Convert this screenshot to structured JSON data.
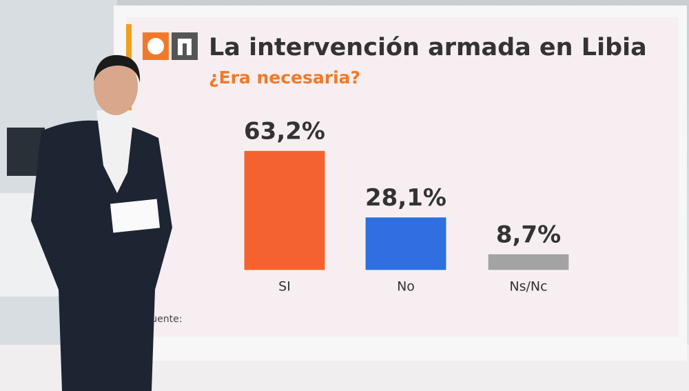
{
  "chart_data": {
    "type": "bar",
    "title": "La intervención armada en Libia",
    "subtitle": "¿Era necesaria?",
    "categories": [
      "SI",
      "No",
      "Ns/Nc"
    ],
    "values": [
      63.2,
      28.1,
      8.7
    ],
    "value_labels": [
      "63,2%",
      "28,1%",
      "8,7%"
    ],
    "colors": [
      "#f4622f",
      "#2f6fe0",
      "#a3a3a3"
    ],
    "source": "Fuente:"
  }
}
